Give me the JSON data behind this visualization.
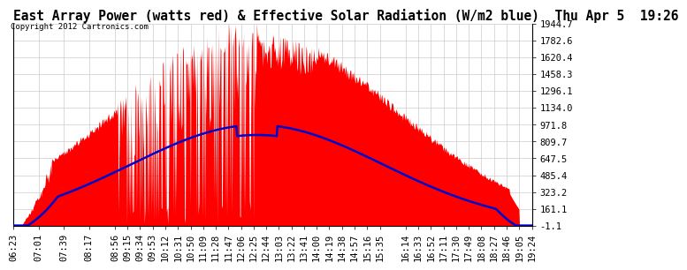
{
  "title": "East Array Power (watts red) & Effective Solar Radiation (W/m2 blue)  Thu Apr 5  19:26",
  "copyright": "Copyright 2012 Cartronics.com",
  "ylabel_right_vals": [
    1944.7,
    1782.6,
    1620.4,
    1458.3,
    1296.1,
    1134.0,
    971.8,
    809.7,
    647.5,
    485.4,
    323.2,
    161.1,
    -1.1
  ],
  "ylabel_right_labels": [
    "1944.7",
    "1782.6",
    "1620.4",
    "1458.3",
    "1296.1",
    "1134.0",
    "971.8",
    "809.7",
    "647.5",
    "485.4",
    "323.2",
    "161.1",
    "-1.1"
  ],
  "ylim": [
    -1.1,
    1944.7
  ],
  "bg_color": "#ffffff",
  "plot_bg_color": "#ffffff",
  "grid_color": "#cccccc",
  "bar_color": "#ff0000",
  "line_color": "#0000cc",
  "title_fontsize": 10.5,
  "tick_fontsize": 7.5,
  "x_tick_times": [
    "06:23",
    "07:01",
    "07:39",
    "08:17",
    "08:56",
    "09:15",
    "09:34",
    "09:53",
    "10:12",
    "10:31",
    "10:50",
    "11:09",
    "11:28",
    "11:47",
    "12:06",
    "12:25",
    "12:44",
    "13:03",
    "13:22",
    "13:41",
    "14:00",
    "14:19",
    "14:38",
    "14:57",
    "15:16",
    "15:35",
    "16:14",
    "16:33",
    "16:52",
    "17:11",
    "17:30",
    "17:49",
    "18:08",
    "18:27",
    "18:46",
    "19:05",
    "19:24"
  ]
}
